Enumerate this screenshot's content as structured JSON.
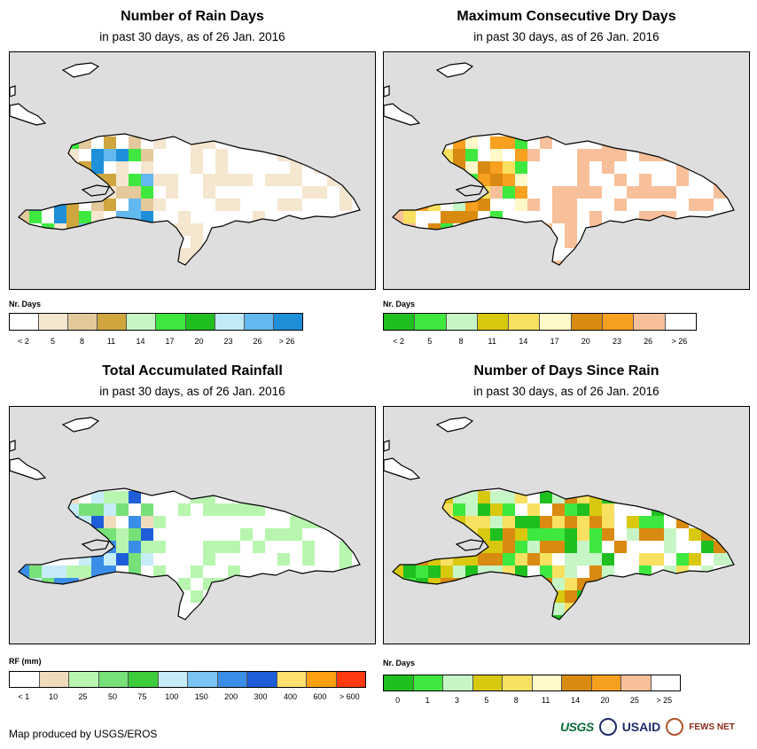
{
  "panels": [
    {
      "title": "Number of Rain Days",
      "subtitle": "in past 30 days, as of 26 Jan. 2016",
      "legend_title": "Nr. Days",
      "colors": [
        "#ffffff",
        "#f5e6cf",
        "#e3c99b",
        "#cfa63e",
        "#c6f6c6",
        "#3ee83e",
        "#1fbf1f",
        "#bfeaf6",
        "#63b8ef",
        "#1e8fd8"
      ],
      "labels": [
        "< 2",
        "5",
        "8",
        "11",
        "14",
        "17",
        "20",
        "23",
        "26",
        "> 26"
      ]
    },
    {
      "title": "Maximum Consecutive Dry Days",
      "subtitle": "in past 30 days, as of 26 Jan. 2016",
      "legend_title": "Nr. Days",
      "colors": [
        "#1fbf1f",
        "#3ee83e",
        "#c6f6c6",
        "#d8c810",
        "#f8e060",
        "#fff8c8",
        "#d98a10",
        "#f8a020",
        "#f8c09a",
        "#ffffff"
      ],
      "labels": [
        "< 2",
        "5",
        "8",
        "11",
        "14",
        "17",
        "20",
        "23",
        "26",
        "> 26"
      ]
    },
    {
      "title": "Total Accumulated Rainfall",
      "subtitle": "in past 30 days, as of 26 Jan. 2016",
      "legend_title": "RF (mm)",
      "colors": [
        "#ffffff",
        "#f0dcbc",
        "#b8f6b0",
        "#78e078",
        "#3ccc3c",
        "#c6ecf8",
        "#7ac4f4",
        "#3a8ee8",
        "#1e5ed8",
        "#ffe070",
        "#ffa010",
        "#ff3a10"
      ],
      "labels": [
        "< 1",
        "10",
        "25",
        "50",
        "75",
        "100",
        "150",
        "200",
        "300",
        "400",
        "600",
        "> 600"
      ]
    },
    {
      "title": "Number of Days Since Rain",
      "subtitle": "in past 30 days, as of 26 Jan. 2016",
      "legend_title": "Nr. Days",
      "colors": [
        "#1fbf1f",
        "#3ee83e",
        "#c6f6c6",
        "#d8c810",
        "#f8e060",
        "#fff8c8",
        "#d98a10",
        "#f8a020",
        "#f8c09a",
        "#ffffff"
      ],
      "labels": [
        "0",
        "1",
        "3",
        "5",
        "8",
        "11",
        "14",
        "20",
        "25",
        "> 25"
      ]
    }
  ],
  "footer": "Map produced by USGS/EROS",
  "logos": {
    "usgs": "USGS",
    "usaid": "USAID",
    "fews": "FEWS NET"
  }
}
